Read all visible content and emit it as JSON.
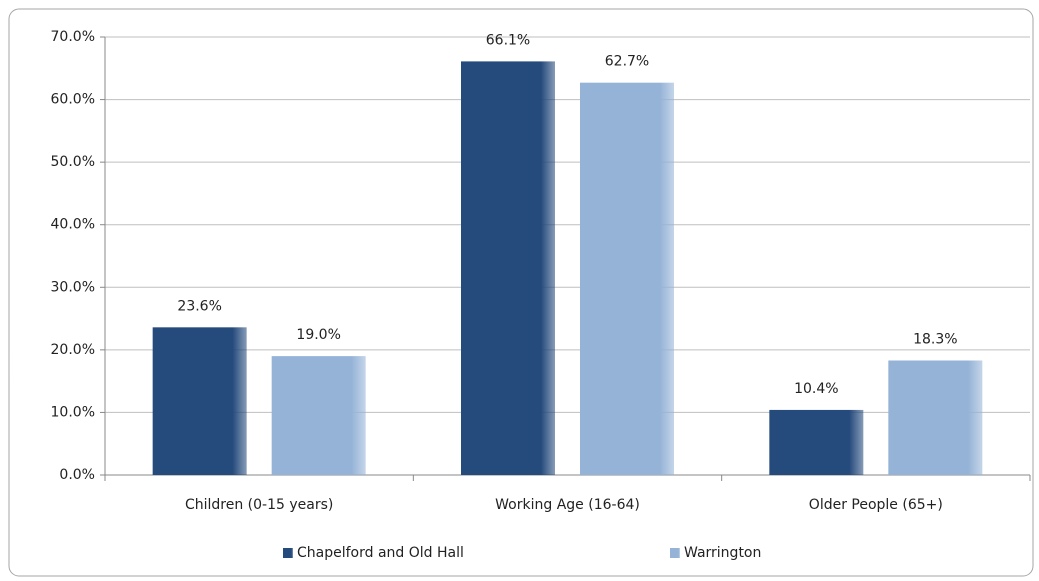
{
  "chart_data": {
    "type": "bar",
    "categories": [
      "Children (0-15 years)",
      "Working Age (16-64)",
      "Older People (65+)"
    ],
    "series": [
      {
        "name": "Chapelford and Old Hall",
        "color": "#254a7c",
        "values": [
          23.6,
          66.1,
          10.4
        ],
        "value_labels": [
          "23.6%",
          "66.1%",
          "10.4%"
        ]
      },
      {
        "name": "Warrington",
        "color": "#95b3d7",
        "values": [
          19.0,
          62.7,
          18.3
        ],
        "value_labels": [
          "19.0%",
          "62.7%",
          "18.3%"
        ]
      }
    ],
    "ylim": [
      0,
      70
    ],
    "yticks": [
      {
        "value": 0,
        "label": "0.0%"
      },
      {
        "value": 10,
        "label": "10.0%"
      },
      {
        "value": 20,
        "label": "20.0%"
      },
      {
        "value": 30,
        "label": "30.0%"
      },
      {
        "value": 40,
        "label": "40.0%"
      },
      {
        "value": 50,
        "label": "50.0%"
      },
      {
        "value": 60,
        "label": "60.0%"
      },
      {
        "value": 70,
        "label": "70.0%"
      }
    ],
    "grid": true,
    "legend": "bottom"
  }
}
